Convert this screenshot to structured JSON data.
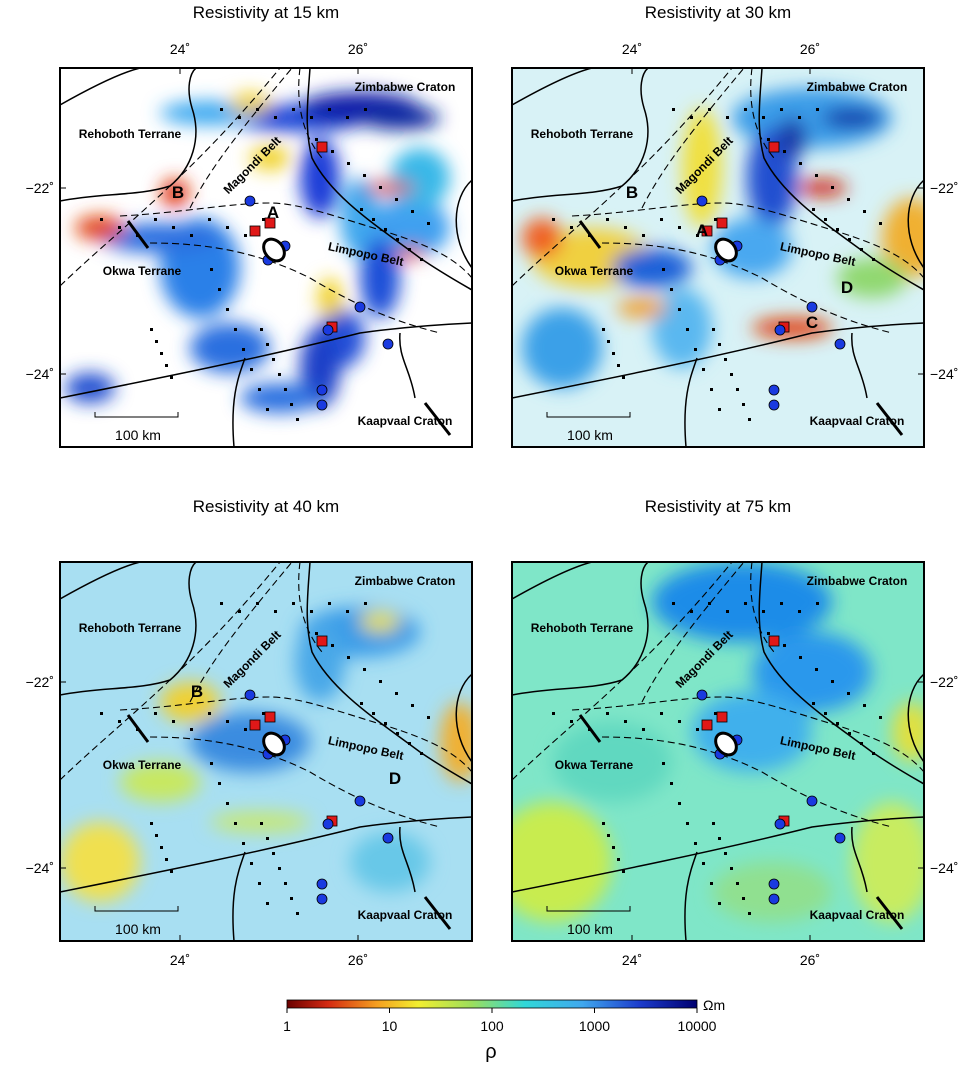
{
  "panels": [
    {
      "title": "Resistivity at 15 km",
      "letters": [
        "A",
        "B"
      ]
    },
    {
      "title": "Resistivity at 30 km",
      "letters": [
        "B",
        "A",
        "D",
        "C"
      ]
    },
    {
      "title": "Resistivity at 40 km",
      "letters": [
        "B",
        "D"
      ]
    },
    {
      "title": "Resistivity at 75 km",
      "letters": []
    }
  ],
  "regions": [
    "Zimbabwe Craton",
    "Rehoboth Terrane",
    "Magondi Belt",
    "Okwa Terrane",
    "Limpopo Belt",
    "Kaapvaal Craton"
  ],
  "x_ticks": [
    "24˚",
    "26˚"
  ],
  "y_ticks": [
    "−22˚",
    "−24˚"
  ],
  "scale_bar": "100 km",
  "colorbar": {
    "ticks": [
      "1",
      "10",
      "100",
      "1000",
      "10000"
    ],
    "unit": "Ωm",
    "label": "ρ"
  }
}
